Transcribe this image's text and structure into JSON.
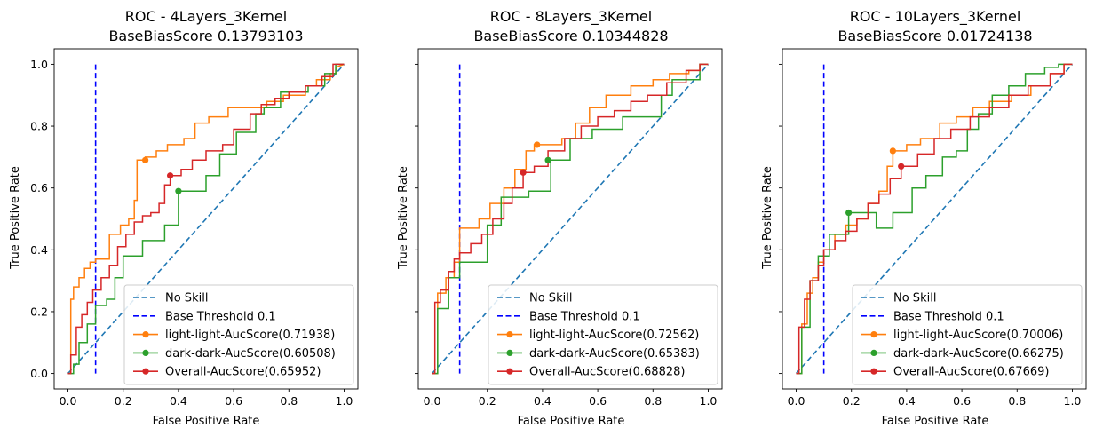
{
  "chart_data": [
    {
      "type": "line",
      "title": "ROC - 4Layers_3Kernel",
      "subtitle": "BaseBiasScore 0.13793103",
      "xlabel": "False Positive Rate",
      "ylabel": "True Positive Rate",
      "xlim": [
        -0.05,
        1.05
      ],
      "ylim": [
        -0.05,
        1.05
      ],
      "xticks": [
        "0.0",
        "0.2",
        "0.4",
        "0.6",
        "0.8",
        "1.0"
      ],
      "yticks": [
        "0.0",
        "0.2",
        "0.4",
        "0.6",
        "0.8",
        "1.0"
      ],
      "show_ytick_labels": true,
      "grid": false,
      "legend_position": "lower-right",
      "no_skill": {
        "name": "No Skill",
        "color": "#1f77b4",
        "x": [
          0,
          1
        ],
        "y": [
          0,
          1
        ]
      },
      "threshold": {
        "name": "Base Threshold 0.1",
        "color": "#0000ff",
        "x": 0.1,
        "y": [
          0,
          1
        ]
      },
      "series": [
        {
          "name": "light-light-AucScore(0.71938)",
          "color": "#ff7f0e",
          "x": [
            0,
            0.01,
            0.01,
            0.02,
            0.02,
            0.04,
            0.04,
            0.06,
            0.06,
            0.08,
            0.08,
            0.1,
            0.1,
            0.15,
            0.15,
            0.19,
            0.19,
            0.22,
            0.22,
            0.24,
            0.24,
            0.25,
            0.25,
            0.28,
            0.28,
            0.32,
            0.32,
            0.36,
            0.36,
            0.42,
            0.42,
            0.46,
            0.46,
            0.51,
            0.51,
            0.58,
            0.58,
            0.61,
            0.61,
            0.66,
            0.66,
            0.72,
            0.72,
            0.78,
            0.78,
            0.86,
            0.86,
            0.9,
            0.9,
            0.95,
            0.95,
            0.97,
            0.97,
            1.0
          ],
          "y": [
            0,
            0,
            0.24,
            0.24,
            0.28,
            0.28,
            0.31,
            0.31,
            0.34,
            0.34,
            0.36,
            0.36,
            0.37,
            0.37,
            0.45,
            0.45,
            0.48,
            0.48,
            0.5,
            0.5,
            0.56,
            0.56,
            0.69,
            0.69,
            0.7,
            0.7,
            0.72,
            0.72,
            0.74,
            0.74,
            0.76,
            0.76,
            0.81,
            0.81,
            0.83,
            0.83,
            0.86,
            0.86,
            0.86,
            0.86,
            0.86,
            0.86,
            0.88,
            0.88,
            0.9,
            0.9,
            0.93,
            0.93,
            0.95,
            0.95,
            0.97,
            0.97,
            0.99,
            1.0
          ]
        },
        {
          "name": "dark-dark-AucScore(0.60508)",
          "color": "#2ca02c",
          "x": [
            0,
            0.02,
            0.02,
            0.04,
            0.04,
            0.07,
            0.07,
            0.1,
            0.1,
            0.14,
            0.14,
            0.17,
            0.17,
            0.2,
            0.2,
            0.27,
            0.27,
            0.35,
            0.35,
            0.4,
            0.4,
            0.44,
            0.44,
            0.5,
            0.5,
            0.55,
            0.55,
            0.61,
            0.61,
            0.68,
            0.68,
            0.71,
            0.71,
            0.77,
            0.77,
            0.87,
            0.87,
            0.93,
            0.93,
            0.97,
            0.97,
            1.0
          ],
          "y": [
            0,
            0,
            0.03,
            0.03,
            0.1,
            0.1,
            0.16,
            0.16,
            0.22,
            0.22,
            0.24,
            0.24,
            0.31,
            0.31,
            0.38,
            0.38,
            0.43,
            0.43,
            0.48,
            0.48,
            0.59,
            0.59,
            0.59,
            0.59,
            0.64,
            0.64,
            0.71,
            0.71,
            0.78,
            0.78,
            0.84,
            0.84,
            0.86,
            0.86,
            0.91,
            0.91,
            0.93,
            0.93,
            0.97,
            0.97,
            1.0,
            1.0
          ]
        },
        {
          "name": "Overall-AucScore(0.65952)",
          "color": "#d62728",
          "x": [
            0,
            0.01,
            0.01,
            0.03,
            0.03,
            0.05,
            0.05,
            0.07,
            0.07,
            0.09,
            0.09,
            0.12,
            0.12,
            0.15,
            0.15,
            0.18,
            0.18,
            0.21,
            0.21,
            0.24,
            0.24,
            0.27,
            0.27,
            0.3,
            0.3,
            0.33,
            0.33,
            0.35,
            0.35,
            0.37,
            0.37,
            0.41,
            0.41,
            0.45,
            0.45,
            0.5,
            0.5,
            0.56,
            0.56,
            0.6,
            0.6,
            0.66,
            0.66,
            0.7,
            0.7,
            0.75,
            0.75,
            0.8,
            0.8,
            0.86,
            0.86,
            0.92,
            0.92,
            0.96,
            0.96,
            1.0
          ],
          "y": [
            0,
            0,
            0.06,
            0.06,
            0.15,
            0.15,
            0.19,
            0.19,
            0.23,
            0.23,
            0.27,
            0.27,
            0.31,
            0.31,
            0.35,
            0.35,
            0.41,
            0.41,
            0.45,
            0.45,
            0.49,
            0.49,
            0.51,
            0.51,
            0.52,
            0.52,
            0.55,
            0.55,
            0.61,
            0.61,
            0.64,
            0.64,
            0.66,
            0.66,
            0.69,
            0.69,
            0.72,
            0.72,
            0.74,
            0.74,
            0.79,
            0.79,
            0.84,
            0.84,
            0.87,
            0.87,
            0.89,
            0.89,
            0.91,
            0.91,
            0.93,
            0.93,
            0.96,
            0.96,
            1.0,
            1.0
          ]
        }
      ],
      "threshold_points": [
        {
          "series": "light-light-AucScore(0.71938)",
          "x": 0.28,
          "y": 0.69
        },
        {
          "series": "dark-dark-AucScore(0.60508)",
          "x": 0.4,
          "y": 0.59
        },
        {
          "series": "Overall-AucScore(0.65952)",
          "x": 0.37,
          "y": 0.64
        }
      ]
    },
    {
      "type": "line",
      "title": "ROC - 8Layers_3Kernel",
      "subtitle": "BaseBiasScore 0.10344828",
      "xlabel": "False Positive Rate",
      "ylabel": "True Positive Rate",
      "xlim": [
        -0.05,
        1.05
      ],
      "ylim": [
        -0.05,
        1.05
      ],
      "xticks": [
        "0.0",
        "0.2",
        "0.4",
        "0.6",
        "0.8",
        "1.0"
      ],
      "yticks": [
        "0.0",
        "0.2",
        "0.4",
        "0.6",
        "0.8",
        "1.0"
      ],
      "show_ytick_labels": false,
      "grid": false,
      "legend_position": "lower-right",
      "no_skill": {
        "name": "No Skill",
        "color": "#1f77b4",
        "x": [
          0,
          1
        ],
        "y": [
          0,
          1
        ]
      },
      "threshold": {
        "name": "Base Threshold 0.1",
        "color": "#0000ff",
        "x": 0.1,
        "y": [
          0,
          1
        ]
      },
      "series": [
        {
          "name": "light-light-AucScore(0.72562)",
          "color": "#ff7f0e",
          "x": [
            0,
            0.02,
            0.02,
            0.05,
            0.05,
            0.08,
            0.08,
            0.1,
            0.1,
            0.17,
            0.17,
            0.21,
            0.21,
            0.26,
            0.26,
            0.3,
            0.3,
            0.34,
            0.34,
            0.37,
            0.37,
            0.4,
            0.4,
            0.47,
            0.47,
            0.52,
            0.52,
            0.57,
            0.57,
            0.63,
            0.63,
            0.72,
            0.72,
            0.8,
            0.8,
            0.86,
            0.86,
            0.93,
            0.93,
            0.97,
            0.97,
            1.0
          ],
          "y": [
            0,
            0,
            0.26,
            0.26,
            0.31,
            0.31,
            0.36,
            0.36,
            0.47,
            0.47,
            0.5,
            0.5,
            0.55,
            0.55,
            0.6,
            0.6,
            0.66,
            0.66,
            0.72,
            0.72,
            0.74,
            0.74,
            0.74,
            0.74,
            0.76,
            0.76,
            0.81,
            0.81,
            0.86,
            0.86,
            0.9,
            0.9,
            0.93,
            0.93,
            0.95,
            0.95,
            0.97,
            0.97,
            0.98,
            0.98,
            1.0,
            1.0
          ]
        },
        {
          "name": "dark-dark-AucScore(0.65383)",
          "color": "#2ca02c",
          "x": [
            0,
            0.02,
            0.02,
            0.06,
            0.06,
            0.1,
            0.1,
            0.2,
            0.2,
            0.25,
            0.25,
            0.35,
            0.35,
            0.43,
            0.43,
            0.5,
            0.5,
            0.58,
            0.58,
            0.69,
            0.69,
            0.83,
            0.83,
            0.87,
            0.87,
            0.97,
            0.97,
            1.0
          ],
          "y": [
            0,
            0,
            0.21,
            0.21,
            0.31,
            0.31,
            0.36,
            0.36,
            0.48,
            0.48,
            0.57,
            0.57,
            0.59,
            0.59,
            0.69,
            0.69,
            0.76,
            0.76,
            0.79,
            0.79,
            0.83,
            0.83,
            0.9,
            0.9,
            0.95,
            0.95,
            1.0,
            1.0
          ]
        },
        {
          "name": "Overall-AucScore(0.68828)",
          "color": "#d62728",
          "x": [
            0,
            0.01,
            0.01,
            0.03,
            0.03,
            0.06,
            0.06,
            0.08,
            0.08,
            0.1,
            0.1,
            0.14,
            0.14,
            0.18,
            0.18,
            0.22,
            0.22,
            0.26,
            0.26,
            0.29,
            0.29,
            0.33,
            0.33,
            0.37,
            0.37,
            0.42,
            0.42,
            0.48,
            0.48,
            0.54,
            0.54,
            0.6,
            0.6,
            0.66,
            0.66,
            0.72,
            0.72,
            0.78,
            0.78,
            0.85,
            0.85,
            0.92,
            0.92,
            0.97,
            0.97,
            1.0
          ],
          "y": [
            0,
            0,
            0.23,
            0.23,
            0.27,
            0.27,
            0.33,
            0.33,
            0.37,
            0.37,
            0.39,
            0.39,
            0.42,
            0.42,
            0.45,
            0.45,
            0.5,
            0.5,
            0.55,
            0.55,
            0.6,
            0.6,
            0.65,
            0.65,
            0.67,
            0.67,
            0.72,
            0.72,
            0.76,
            0.76,
            0.8,
            0.8,
            0.83,
            0.83,
            0.85,
            0.85,
            0.88,
            0.88,
            0.9,
            0.9,
            0.94,
            0.94,
            0.98,
            0.98,
            1.0,
            1.0
          ]
        }
      ],
      "threshold_points": [
        {
          "series": "light-light-AucScore(0.72562)",
          "x": 0.38,
          "y": 0.74
        },
        {
          "series": "dark-dark-AucScore(0.65383)",
          "x": 0.42,
          "y": 0.69
        },
        {
          "series": "Overall-AucScore(0.68828)",
          "x": 0.33,
          "y": 0.65
        }
      ]
    },
    {
      "type": "line",
      "title": "ROC - 10Layers_3Kernel",
      "subtitle": "BaseBiasScore 0.01724138",
      "xlabel": "False Positive Rate",
      "ylabel": "True Positive Rate",
      "xlim": [
        -0.05,
        1.05
      ],
      "ylim": [
        -0.05,
        1.05
      ],
      "xticks": [
        "0.0",
        "0.2",
        "0.4",
        "0.6",
        "0.8",
        "1.0"
      ],
      "yticks": [
        "0.0",
        "0.2",
        "0.4",
        "0.6",
        "0.8",
        "1.0"
      ],
      "show_ytick_labels": false,
      "grid": false,
      "legend_position": "lower-right",
      "no_skill": {
        "name": "No Skill",
        "color": "#1f77b4",
        "x": [
          0,
          1
        ],
        "y": [
          0,
          1
        ]
      },
      "threshold": {
        "name": "Base Threshold 0.1",
        "color": "#0000ff",
        "x": 0.1,
        "y": [
          0,
          1
        ]
      },
      "series": [
        {
          "name": "light-light-AucScore(0.70006)",
          "color": "#ff7f0e",
          "x": [
            0,
            0.02,
            0.02,
            0.04,
            0.04,
            0.06,
            0.06,
            0.08,
            0.08,
            0.1,
            0.1,
            0.14,
            0.14,
            0.18,
            0.18,
            0.22,
            0.22,
            0.26,
            0.26,
            0.3,
            0.3,
            0.33,
            0.33,
            0.35,
            0.35,
            0.4,
            0.4,
            0.45,
            0.45,
            0.52,
            0.52,
            0.58,
            0.58,
            0.64,
            0.64,
            0.7,
            0.7,
            0.78,
            0.78,
            0.85,
            0.85,
            0.92,
            0.92,
            0.97,
            0.97,
            1.0
          ],
          "y": [
            0,
            0,
            0.16,
            0.16,
            0.26,
            0.26,
            0.31,
            0.31,
            0.36,
            0.36,
            0.4,
            0.4,
            0.45,
            0.45,
            0.48,
            0.48,
            0.5,
            0.5,
            0.55,
            0.55,
            0.59,
            0.59,
            0.67,
            0.67,
            0.72,
            0.72,
            0.74,
            0.74,
            0.76,
            0.76,
            0.81,
            0.81,
            0.83,
            0.83,
            0.86,
            0.86,
            0.88,
            0.88,
            0.9,
            0.9,
            0.93,
            0.93,
            0.97,
            0.97,
            1.0,
            1.0
          ]
        },
        {
          "name": "dark-dark-AucScore(0.66275)",
          "color": "#2ca02c",
          "x": [
            0,
            0.02,
            0.02,
            0.05,
            0.05,
            0.08,
            0.08,
            0.12,
            0.12,
            0.19,
            0.19,
            0.29,
            0.29,
            0.35,
            0.35,
            0.42,
            0.42,
            0.47,
            0.47,
            0.53,
            0.53,
            0.58,
            0.58,
            0.62,
            0.62,
            0.66,
            0.66,
            0.71,
            0.71,
            0.77,
            0.77,
            0.83,
            0.83,
            0.9,
            0.9,
            0.95,
            0.95,
            1.0
          ],
          "y": [
            0,
            0,
            0.15,
            0.15,
            0.3,
            0.3,
            0.38,
            0.38,
            0.45,
            0.45,
            0.52,
            0.52,
            0.47,
            0.47,
            0.52,
            0.52,
            0.6,
            0.6,
            0.64,
            0.64,
            0.7,
            0.7,
            0.72,
            0.72,
            0.79,
            0.79,
            0.84,
            0.84,
            0.9,
            0.9,
            0.93,
            0.93,
            0.97,
            0.97,
            0.99,
            0.99,
            1.0,
            1.0
          ]
        },
        {
          "name": "Overall-AucScore(0.67669)",
          "color": "#d62728",
          "x": [
            0,
            0.01,
            0.01,
            0.03,
            0.03,
            0.05,
            0.05,
            0.08,
            0.08,
            0.1,
            0.1,
            0.14,
            0.14,
            0.18,
            0.18,
            0.22,
            0.22,
            0.26,
            0.26,
            0.3,
            0.3,
            0.34,
            0.34,
            0.38,
            0.38,
            0.44,
            0.44,
            0.5,
            0.5,
            0.56,
            0.56,
            0.63,
            0.63,
            0.7,
            0.7,
            0.77,
            0.77,
            0.84,
            0.84,
            0.92,
            0.92,
            0.97,
            0.97,
            1.0
          ],
          "y": [
            0,
            0,
            0.15,
            0.15,
            0.24,
            0.24,
            0.3,
            0.3,
            0.35,
            0.35,
            0.4,
            0.4,
            0.43,
            0.43,
            0.46,
            0.46,
            0.5,
            0.5,
            0.55,
            0.55,
            0.58,
            0.58,
            0.63,
            0.63,
            0.67,
            0.67,
            0.71,
            0.71,
            0.76,
            0.76,
            0.79,
            0.79,
            0.83,
            0.83,
            0.86,
            0.86,
            0.9,
            0.9,
            0.93,
            0.93,
            0.97,
            0.97,
            1.0,
            1.0
          ]
        }
      ],
      "threshold_points": [
        {
          "series": "light-light-AucScore(0.70006)",
          "x": 0.35,
          "y": 0.72
        },
        {
          "series": "dark-dark-AucScore(0.66275)",
          "x": 0.19,
          "y": 0.52
        },
        {
          "series": "Overall-AucScore(0.67669)",
          "x": 0.38,
          "y": 0.67
        }
      ]
    }
  ]
}
